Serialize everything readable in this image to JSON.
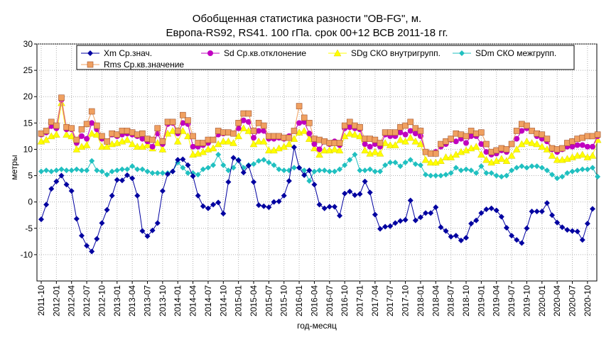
{
  "chart_data": {
    "type": "line",
    "title_line1": "Обобщенная статистика разности \"OB-FG\", м.",
    "title_line2": "Европа-RS92, RS41. 100 гПа. срок 00+12 ВСВ 2011-18 гг.",
    "xlabel": "год-месяц",
    "ylabel": "метры",
    "ylim": [
      -15,
      30
    ],
    "y_ticks": [
      30,
      25,
      20,
      15,
      10,
      5,
      0,
      -5,
      -10
    ],
    "grid": true,
    "legend_position": "top",
    "x_tick_labels": [
      "2011-10",
      "2012-01",
      "2012-04",
      "2012-07",
      "2012-10",
      "2013-01",
      "2013-04",
      "2013-07",
      "2013-10",
      "2014-01",
      "2014-04",
      "2014-07",
      "2014-10",
      "2015-01",
      "2015-04",
      "2015-07",
      "2015-10",
      "2016-01",
      "2016-04",
      "2016-07",
      "2016-10",
      "2017-01",
      "2017-04",
      "2017-07",
      "2017-10",
      "2018-01",
      "2018-04",
      "2018-07",
      "2018-10",
      "2019-01",
      "2019-04",
      "2019-07",
      "2019-10",
      "2020-01",
      "2020-04",
      "2020-07",
      "2020-10"
    ],
    "series": [
      {
        "name": "Xm Ср.знач.",
        "color": "#0000a0",
        "marker": "diamond",
        "values": [
          -3.3,
          -0.5,
          2.5,
          3.9,
          5.0,
          3.3,
          2.1,
          -3.2,
          -6.4,
          -8.3,
          -9.4,
          -7.0,
          -4.0,
          -1.5,
          1.2,
          4.2,
          4.1,
          5.1,
          4.5,
          1.2,
          -5.5,
          -6.5,
          -5.4,
          -4.0,
          2.1,
          5.3,
          5.8,
          8.0,
          8.1,
          7.0,
          4.9,
          1.2,
          -0.8,
          -1.2,
          -0.5,
          -0.1,
          -2.2,
          3.8,
          8.4,
          7.9,
          5.6,
          6.9,
          3.8,
          -0.6,
          -0.8,
          -1.0,
          0.0,
          0.1,
          1.2,
          4.0,
          10.4,
          6.5,
          5.1,
          6.0,
          3.3,
          -0.5,
          -1.2,
          -0.9,
          -0.9,
          -2.6,
          1.6,
          2.0,
          1.3,
          1.5,
          3.9,
          1.8,
          -2.4,
          -5.1,
          -4.7,
          -4.6,
          -4.0,
          -3.6,
          -3.4,
          0.3,
          -3.5,
          -2.9,
          -2.1,
          -2.1,
          -1.0,
          -4.8,
          -5.5,
          -6.6,
          -6.4,
          -7.3,
          -6.8,
          -4.1,
          -3.5,
          -2.1,
          -1.4,
          -1.2,
          -1.6,
          -2.8,
          -4.9,
          -6.4,
          -7.2,
          -7.8,
          -5.0,
          -1.8,
          -1.8,
          -1.8,
          -0.2,
          -2.5,
          -3.9,
          -4.8,
          -5.3,
          -5.5,
          -5.6,
          -7.2,
          -4.1,
          -1.3
        ]
      },
      {
        "name": "Sd Ср.кв.отклонение",
        "color": "#c000c0",
        "marker": "circle",
        "values": [
          12.8,
          13.2,
          14.4,
          14.0,
          19.4,
          13.8,
          13.8,
          11.2,
          12.5,
          12.0,
          15.0,
          13.8,
          12.0,
          11.5,
          12.8,
          12.5,
          12.8,
          13.0,
          12.8,
          12.5,
          12.0,
          11.5,
          10.5,
          13.0,
          11.0,
          14.8,
          15.0,
          13.0,
          15.0,
          14.8,
          10.5,
          10.5,
          10.8,
          11.2,
          11.8,
          12.8,
          13.0,
          13.2,
          13.0,
          14.0,
          15.5,
          15.2,
          12.2,
          13.5,
          13.5,
          12.0,
          12.0,
          12.2,
          12.0,
          12.5,
          13.5,
          15.0,
          15.2,
          13.0,
          11.0,
          10.0,
          11.5,
          11.0,
          11.5,
          10.8,
          14.0,
          14.2,
          14.0,
          13.8,
          11.0,
          10.5,
          11.0,
          10.5,
          12.8,
          12.5,
          12.5,
          13.2,
          12.8,
          13.5,
          13.0,
          12.5,
          9.5,
          9.2,
          9.5,
          10.5,
          11.0,
          11.8,
          11.5,
          12.0,
          11.2,
          12.5,
          12.5,
          11.0,
          9.5,
          9.0,
          9.2,
          9.8,
          9.5,
          11.0,
          12.0,
          13.5,
          14.0,
          13.5,
          12.5,
          12.0,
          11.5,
          10.0,
          9.5,
          10.0,
          10.5,
          10.5,
          10.8,
          10.8,
          10.5,
          10.5,
          12.5
        ]
      },
      {
        "name": "SDg СКО внутригрупп.",
        "color": "#ffff00",
        "marker": "triangle",
        "values": [
          11.5,
          11.8,
          12.5,
          12.8,
          18.8,
          12.8,
          12.5,
          10.0,
          10.5,
          10.8,
          13.0,
          12.8,
          10.5,
          10.5,
          11.0,
          11.2,
          11.5,
          11.8,
          11.0,
          10.5,
          10.5,
          10.8,
          10.2,
          11.2,
          10.0,
          13.0,
          13.5,
          11.5,
          13.5,
          12.5,
          9.0,
          9.2,
          9.5,
          10.0,
          10.2,
          11.0,
          11.5,
          11.5,
          11.2,
          12.5,
          14.0,
          13.5,
          11.0,
          11.5,
          11.5,
          9.8,
          9.8,
          10.2,
          10.5,
          11.0,
          12.0,
          13.2,
          13.5,
          12.0,
          10.2,
          9.0,
          9.8,
          9.8,
          10.0,
          9.8,
          12.5,
          13.0,
          12.8,
          12.5,
          9.8,
          9.2,
          9.5,
          9.2,
          11.2,
          10.8,
          10.8,
          11.8,
          11.5,
          12.2,
          11.5,
          11.0,
          8.0,
          7.5,
          7.5,
          7.8,
          8.5,
          8.5,
          9.0,
          9.5,
          9.8,
          10.2,
          10.5,
          9.0,
          8.0,
          7.5,
          7.8,
          8.2,
          7.8,
          8.8,
          10.0,
          11.0,
          11.5,
          11.2,
          11.0,
          10.5,
          10.0,
          8.8,
          8.0,
          8.0,
          8.2,
          8.5,
          8.8,
          9.0,
          8.5,
          8.8,
          11.8
        ]
      },
      {
        "name": "SDm СКО межгрупп.",
        "color": "#20c0c0",
        "marker": "diamond",
        "values": [
          5.8,
          6.0,
          5.8,
          6.0,
          6.2,
          6.0,
          6.0,
          6.2,
          6.0,
          6.0,
          7.8,
          6.0,
          5.8,
          5.2,
          5.8,
          6.0,
          6.2,
          6.2,
          6.8,
          6.2,
          6.2,
          5.8,
          5.5,
          5.5,
          5.5,
          5.5,
          5.8,
          7.5,
          6.5,
          5.5,
          5.5,
          5.2,
          6.2,
          6.5,
          7.0,
          9.0,
          7.0,
          6.0,
          6.5,
          8.0,
          6.5,
          7.0,
          7.2,
          7.8,
          8.0,
          7.5,
          7.0,
          6.2,
          6.0,
          6.0,
          6.5,
          6.5,
          6.0,
          4.0,
          5.8,
          6.0,
          6.0,
          5.8,
          5.8,
          6.2,
          7.0,
          8.0,
          9.0,
          6.0,
          6.0,
          6.2,
          5.8,
          5.8,
          7.0,
          7.5,
          7.5,
          6.8,
          7.5,
          8.0,
          7.2,
          7.0,
          5.2,
          5.0,
          5.0,
          5.0,
          5.2,
          5.5,
          6.5,
          6.0,
          6.2,
          6.0,
          5.5,
          6.8,
          5.5,
          5.5,
          5.0,
          4.8,
          5.0,
          6.0,
          6.5,
          6.8,
          6.5,
          6.8,
          6.8,
          6.5,
          6.0,
          5.2,
          4.5,
          4.8,
          5.5,
          5.8,
          6.0,
          6.2,
          6.2,
          6.5,
          4.8
        ]
      },
      {
        "name": "Rms Ср.кв.значение",
        "color": "#f0a060",
        "marker": "square",
        "values": [
          13.0,
          13.5,
          15.2,
          14.5,
          19.8,
          14.2,
          14.0,
          11.8,
          13.8,
          14.8,
          17.2,
          14.5,
          12.5,
          11.5,
          13.0,
          12.8,
          13.5,
          13.5,
          13.2,
          12.8,
          13.0,
          12.0,
          11.8,
          14.0,
          11.5,
          15.2,
          15.2,
          13.5,
          16.5,
          15.5,
          12.5,
          11.2,
          11.2,
          11.8,
          11.8,
          13.5,
          13.2,
          13.2,
          13.0,
          15.0,
          16.8,
          16.8,
          13.5,
          15.0,
          14.5,
          12.5,
          12.5,
          12.5,
          12.2,
          12.2,
          13.5,
          18.2,
          16.0,
          15.0,
          12.0,
          11.8,
          11.5,
          11.2,
          11.2,
          11.2,
          14.5,
          15.2,
          14.5,
          14.2,
          12.0,
          12.0,
          11.8,
          11.2,
          13.2,
          13.2,
          13.2,
          14.2,
          14.5,
          15.2,
          14.0,
          13.5,
          9.5,
          9.2,
          9.2,
          11.0,
          11.5,
          12.0,
          13.0,
          12.8,
          12.5,
          13.5,
          13.0,
          13.2,
          11.0,
          9.5,
          9.8,
          10.2,
          10.0,
          11.0,
          13.5,
          14.8,
          14.5,
          13.5,
          13.0,
          12.8,
          12.0,
          10.2,
          10.0,
          10.2,
          11.2,
          11.5,
          12.0,
          12.2,
          12.5,
          12.5,
          12.8
        ]
      }
    ]
  }
}
